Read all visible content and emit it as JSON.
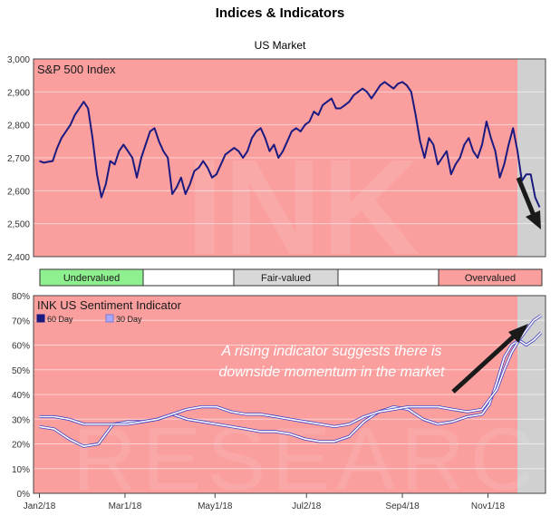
{
  "title": "Indices & Indicators",
  "subtitle": "US Market",
  "colors": {
    "overvalued_bg": "#fa9e9e",
    "future_bg": "#d0d0d0",
    "line_dark": "#1a1a80",
    "line_light": "#a8a8ff",
    "undervalued_fill": "#8ef08e",
    "fairvalued_fill": "#d8d8d8",
    "overvalued_fill": "#fa9e9e"
  },
  "legend_bar": [
    {
      "label": "Undervalued",
      "color": "#8ef08e"
    },
    {
      "label": "",
      "color": "#ffffff"
    },
    {
      "label": "Fair-valued",
      "color": "#d8d8d8"
    },
    {
      "label": "",
      "color": "#ffffff"
    },
    {
      "label": "Overvalued",
      "color": "#fa9e9e"
    }
  ],
  "watermark": "INK RESEARCH",
  "annotation": {
    "line1": "A rising indicator suggests there is",
    "line2": "downside momentum in the market"
  },
  "chart_data": [
    {
      "type": "line",
      "title": "S&P 500 Index",
      "ylim": [
        2400,
        3000
      ],
      "yticks": [
        "2,400",
        "2,500",
        "2,600",
        "2,700",
        "2,800",
        "2,900",
        "3,000"
      ],
      "ytick_values": [
        2400,
        2500,
        2600,
        2700,
        2800,
        2900,
        3000
      ],
      "grid": true,
      "series": [
        {
          "name": "",
          "x": [
            0,
            3,
            6,
            9,
            12,
            15,
            18,
            21,
            24,
            27,
            30,
            33,
            36,
            39,
            42,
            45,
            48,
            51,
            54,
            57,
            60,
            63,
            66,
            69,
            72,
            75,
            78,
            81,
            84,
            87,
            90,
            93,
            96,
            99,
            102,
            105,
            108,
            111,
            114,
            117,
            120,
            123,
            126,
            129,
            132,
            135,
            138,
            141,
            144,
            147,
            150,
            153,
            156,
            159,
            162,
            165,
            168,
            171,
            174,
            177,
            180,
            183,
            186,
            189,
            192,
            195,
            198,
            201,
            204,
            207,
            210,
            213,
            216,
            219,
            222,
            225,
            228,
            231,
            234,
            237,
            240,
            243,
            246,
            249,
            252,
            255,
            258,
            261,
            264,
            267,
            270,
            273,
            276,
            279,
            282,
            285,
            288,
            291,
            294,
            297,
            300,
            303,
            306,
            309,
            312,
            315,
            318,
            321,
            324,
            327,
            330,
            333,
            336,
            339
          ],
          "y": [
            2690,
            2685,
            2688,
            2690,
            2730,
            2760,
            2780,
            2800,
            2830,
            2850,
            2870,
            2850,
            2760,
            2650,
            2580,
            2620,
            2690,
            2680,
            2720,
            2740,
            2720,
            2700,
            2640,
            2700,
            2740,
            2780,
            2790,
            2750,
            2720,
            2700,
            2590,
            2610,
            2640,
            2590,
            2620,
            2660,
            2670,
            2690,
            2670,
            2640,
            2650,
            2680,
            2710,
            2720,
            2730,
            2720,
            2700,
            2720,
            2760,
            2780,
            2790,
            2760,
            2720,
            2740,
            2700,
            2720,
            2750,
            2780,
            2790,
            2780,
            2800,
            2810,
            2840,
            2830,
            2860,
            2870,
            2880,
            2850,
            2850,
            2860,
            2870,
            2890,
            2900,
            2910,
            2900,
            2880,
            2900,
            2920,
            2930,
            2920,
            2910,
            2925,
            2930,
            2920,
            2900,
            2830,
            2750,
            2700,
            2760,
            2740,
            2680,
            2700,
            2720,
            2650,
            2680,
            2700,
            2740,
            2760,
            2720,
            2700,
            2740,
            2810,
            2760,
            2720,
            2640,
            2680,
            2740,
            2790,
            2720,
            2630,
            2650,
            2650,
            2580,
            2550
          ]
        }
      ]
    },
    {
      "type": "line",
      "title": "INK US Sentiment Indicator",
      "ylim": [
        0,
        80
      ],
      "yticks": [
        "0%",
        "10%",
        "20%",
        "30%",
        "40%",
        "50%",
        "60%",
        "70%",
        "80%"
      ],
      "ytick_values": [
        0,
        10,
        20,
        30,
        40,
        50,
        60,
        70,
        80
      ],
      "xticks": [
        "Jan2/18",
        "Mar1/18",
        "May1/18",
        "Jul2/18",
        "Sep4/18",
        "Nov1/18"
      ],
      "xtick_days": [
        0,
        58,
        119,
        181,
        246,
        304
      ],
      "x_range_days": [
        -4,
        343
      ],
      "grid": true,
      "legend_position": "top-left",
      "series": [
        {
          "name": "60 Day",
          "color": "#1a1a80",
          "x": [
            0,
            10,
            20,
            30,
            40,
            50,
            60,
            70,
            80,
            90,
            100,
            110,
            120,
            130,
            140,
            150,
            160,
            170,
            180,
            190,
            200,
            210,
            220,
            230,
            240,
            250,
            260,
            270,
            280,
            290,
            300,
            305,
            310,
            315,
            320,
            325,
            330,
            335,
            340
          ],
          "y": [
            31,
            31,
            30,
            28,
            28,
            28,
            28,
            29,
            30,
            32,
            34,
            35,
            35,
            33,
            32,
            32,
            31,
            30,
            29,
            28,
            27,
            28,
            31,
            33,
            34,
            35,
            35,
            35,
            34,
            33,
            34,
            38,
            42,
            50,
            57,
            62,
            66,
            70,
            72
          ]
        },
        {
          "name": "30 Day",
          "color": "#a8a8ff",
          "x": [
            0,
            10,
            20,
            30,
            40,
            50,
            60,
            70,
            80,
            90,
            100,
            110,
            120,
            130,
            140,
            150,
            160,
            170,
            180,
            190,
            200,
            210,
            220,
            230,
            240,
            250,
            260,
            270,
            280,
            290,
            300,
            305,
            310,
            315,
            320,
            325,
            330,
            335,
            340
          ],
          "y": [
            27,
            26,
            22,
            19,
            20,
            28,
            29,
            29,
            30,
            32,
            30,
            29,
            28,
            27,
            26,
            25,
            25,
            24,
            22,
            21,
            21,
            23,
            29,
            33,
            35,
            34,
            30,
            28,
            29,
            31,
            32,
            36,
            45,
            55,
            60,
            62,
            60,
            62,
            65
          ]
        }
      ]
    }
  ]
}
